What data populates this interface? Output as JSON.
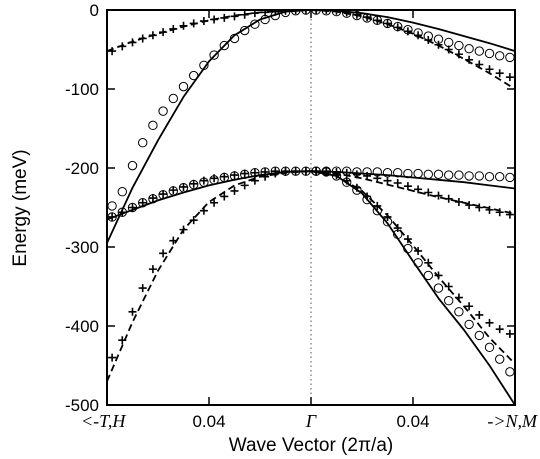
{
  "chart_data": {
    "type": "line",
    "ylabel": "Energy (meV)",
    "xlabel": "Wave Vector (2π/a)",
    "x_tick_labels": [
      "<-T,H",
      "0.04",
      "Γ",
      "0.04",
      "->N,M"
    ],
    "y_tick_labels": [
      "0",
      "-100",
      "-200",
      "-300",
      "-400",
      "-500"
    ],
    "ylim": [
      -500,
      0
    ],
    "xlim": [
      -0.08,
      0.08
    ],
    "x_ticks": [
      -0.08,
      -0.04,
      0,
      0.04,
      0.08
    ],
    "y_ticks": [
      0,
      -100,
      -200,
      -300,
      -400,
      -500
    ],
    "gamma_line": true,
    "series": [
      {
        "style": "solid",
        "x": [
          -0.08,
          -0.07,
          -0.06,
          -0.05,
          -0.04,
          -0.03,
          -0.02,
          -0.01,
          0
        ],
        "y": [
          -295,
          -225,
          -165,
          -110,
          -65,
          -32,
          -12,
          -2,
          0
        ]
      },
      {
        "style": "solid",
        "x": [
          0,
          0.01,
          0.02,
          0.03,
          0.04,
          0.05,
          0.06,
          0.07,
          0.08
        ],
        "y": [
          0,
          -1,
          -4,
          -9,
          -16,
          -24,
          -33,
          -42,
          -52
        ]
      },
      {
        "style": "dashed",
        "x": [
          0,
          0.01,
          0.02,
          0.03,
          0.04,
          0.05,
          0.06,
          0.07,
          0.08
        ],
        "y": [
          0,
          -2,
          -8,
          -18,
          -30,
          -45,
          -62,
          -80,
          -100
        ]
      },
      {
        "style": "dashed",
        "x": [
          -0.08,
          -0.07,
          -0.06,
          -0.05,
          -0.04,
          -0.03,
          -0.02,
          -0.01,
          0
        ],
        "y": [
          -52,
          -40,
          -30,
          -21,
          -13,
          -7,
          -3,
          -1,
          0
        ]
      },
      {
        "style": "solid",
        "x": [
          -0.08,
          -0.07,
          -0.06,
          -0.05,
          -0.04,
          -0.03,
          -0.02,
          -0.01,
          0
        ],
        "y": [
          -265,
          -253,
          -241,
          -231,
          -222,
          -215,
          -209,
          -205,
          -204
        ]
      },
      {
        "style": "solid",
        "x": [
          0,
          0.01,
          0.02,
          0.03,
          0.04,
          0.05,
          0.06,
          0.07,
          0.08
        ],
        "y": [
          -204,
          -205,
          -207,
          -209,
          -212,
          -215,
          -218,
          -222,
          -226
        ]
      },
      {
        "style": "dashed",
        "x": [
          0,
          0.01,
          0.02,
          0.03,
          0.04,
          0.05,
          0.06,
          0.07,
          0.08
        ],
        "y": [
          -204,
          -207,
          -213,
          -221,
          -229,
          -237,
          -244,
          -251,
          -258
        ]
      },
      {
        "style": "dashed",
        "x": [
          -0.08,
          -0.07,
          -0.06,
          -0.05,
          -0.04,
          -0.03,
          -0.02,
          -0.01,
          0
        ],
        "y": [
          -470,
          -395,
          -330,
          -278,
          -243,
          -222,
          -211,
          -206,
          -204
        ]
      },
      {
        "style": "solid",
        "x": [
          0,
          0.01,
          0.02,
          0.03,
          0.04,
          0.05,
          0.06,
          0.07,
          0.08
        ],
        "y": [
          -204,
          -210,
          -232,
          -270,
          -318,
          -365,
          -405,
          -450,
          -500
        ]
      },
      {
        "style": "dashed",
        "x": [
          0,
          0.01,
          0.02,
          0.03,
          0.04,
          0.05,
          0.06,
          0.07,
          0.08
        ],
        "y": [
          -204,
          -210,
          -229,
          -260,
          -298,
          -338,
          -375,
          -415,
          -448
        ]
      },
      {
        "style": "circles",
        "x": [
          -0.078,
          -0.074,
          -0.07,
          -0.066,
          -0.062,
          -0.058,
          -0.054,
          -0.05,
          -0.046,
          -0.042,
          -0.038,
          -0.034,
          -0.03,
          -0.026,
          -0.022,
          -0.018,
          -0.014,
          -0.01,
          -0.006,
          -0.002,
          0.002,
          0.006,
          0.01,
          0.014,
          0.018,
          0.022,
          0.026,
          0.03,
          0.034,
          0.038,
          0.042,
          0.046,
          0.05,
          0.054,
          0.058,
          0.062,
          0.066,
          0.07,
          0.074,
          0.078
        ],
        "y": [
          -248,
          -230,
          -197,
          -168,
          -146,
          -128,
          -112,
          -97,
          -83,
          -70,
          -57,
          -45,
          -36,
          -26,
          -18,
          -12,
          -7,
          -3,
          -1,
          0,
          0,
          -1,
          -2,
          -4,
          -7,
          -10,
          -13,
          -17,
          -21,
          -25,
          -29,
          -33,
          -37,
          -41,
          -45,
          -49,
          -52,
          -55,
          -58,
          -60
        ]
      },
      {
        "style": "crosses",
        "x": [
          -0.078,
          -0.074,
          -0.07,
          -0.066,
          -0.062,
          -0.058,
          -0.054,
          -0.05,
          -0.046,
          -0.042,
          -0.038,
          -0.034,
          -0.03,
          -0.026,
          -0.022,
          -0.018,
          -0.014,
          -0.01,
          -0.006,
          -0.002,
          0.002,
          0.006,
          0.01,
          0.014,
          0.018,
          0.022,
          0.026,
          0.03,
          0.034,
          0.038,
          0.042,
          0.046,
          0.05,
          0.054,
          0.058,
          0.062,
          0.066,
          0.07,
          0.074,
          0.078
        ],
        "y": [
          -52,
          -46,
          -41,
          -36,
          -32,
          -28,
          -24,
          -20,
          -17,
          -14,
          -12,
          -10,
          -8,
          -6,
          -4,
          -3,
          -2,
          -1,
          0,
          0,
          0,
          0,
          -1,
          -3,
          -6,
          -9,
          -13,
          -17,
          -22,
          -27,
          -32,
          -38,
          -44,
          -50,
          -56,
          -63,
          -69,
          -75,
          -80,
          -85
        ]
      },
      {
        "style": "circles",
        "x": [
          -0.078,
          -0.074,
          -0.07,
          -0.066,
          -0.062,
          -0.058,
          -0.054,
          -0.05,
          -0.046,
          -0.042,
          -0.038,
          -0.034,
          -0.03,
          -0.026,
          -0.022,
          -0.018,
          -0.014,
          -0.01,
          -0.006,
          -0.002,
          0.002,
          0.006,
          0.01,
          0.014,
          0.018,
          0.022,
          0.026,
          0.03,
          0.034,
          0.038,
          0.042,
          0.046,
          0.05,
          0.054,
          0.058,
          0.062,
          0.066,
          0.07,
          0.074,
          0.078
        ],
        "y": [
          -262,
          -256,
          -250,
          -244,
          -239,
          -234,
          -229,
          -225,
          -221,
          -218,
          -215,
          -212,
          -210,
          -208,
          -206,
          -205,
          -204,
          -204,
          -204,
          -204,
          -204,
          -204,
          -204,
          -204,
          -205,
          -205,
          -205,
          -206,
          -206,
          -207,
          -207,
          -208,
          -208,
          -209,
          -209,
          -210,
          -210,
          -211,
          -211,
          -212
        ]
      },
      {
        "style": "crosses",
        "x": [
          -0.078,
          -0.074,
          -0.07,
          -0.066,
          -0.062,
          -0.058,
          -0.054,
          -0.05,
          -0.046,
          -0.042,
          -0.038,
          -0.034,
          -0.03,
          -0.026,
          -0.022,
          -0.018,
          -0.014,
          -0.01,
          -0.006,
          -0.002,
          0.002,
          0.006,
          0.01,
          0.014,
          0.018,
          0.022,
          0.026,
          0.03,
          0.034,
          0.038,
          0.042,
          0.046,
          0.05,
          0.054,
          0.058,
          0.062,
          0.066,
          0.07,
          0.074,
          0.078
        ],
        "y": [
          -262,
          -256,
          -250,
          -244,
          -238,
          -233,
          -228,
          -224,
          -220,
          -216,
          -213,
          -211,
          -209,
          -207,
          -206,
          -205,
          -204,
          -204,
          -204,
          -204,
          -204,
          -204,
          -205,
          -206,
          -208,
          -210,
          -213,
          -216,
          -219,
          -223,
          -227,
          -231,
          -235,
          -239,
          -243,
          -247,
          -250,
          -253,
          -256,
          -259
        ]
      },
      {
        "style": "crosses",
        "x": [
          -0.078,
          -0.074,
          -0.07,
          -0.066,
          -0.062,
          -0.058,
          -0.054,
          -0.05,
          -0.046,
          -0.042,
          -0.038,
          -0.034,
          -0.03,
          -0.026,
          -0.022,
          -0.018,
          -0.014,
          -0.01,
          -0.006,
          -0.002,
          0.002,
          0.006,
          0.01,
          0.014,
          0.018,
          0.022,
          0.026,
          0.03,
          0.034,
          0.038,
          0.042,
          0.046,
          0.05,
          0.054,
          0.058,
          0.062,
          0.066,
          0.07,
          0.074,
          0.078
        ],
        "y": [
          -440,
          -418,
          -382,
          -352,
          -328,
          -308,
          -292,
          -278,
          -266,
          -254,
          -244,
          -236,
          -229,
          -222,
          -216,
          -211,
          -207,
          -205,
          -204,
          -204,
          -204,
          -205,
          -209,
          -216,
          -225,
          -236,
          -248,
          -262,
          -276,
          -290,
          -305,
          -320,
          -336,
          -350,
          -364,
          -375,
          -386,
          -396,
          -404,
          -410
        ]
      },
      {
        "style": "circles",
        "x": [
          0.002,
          0.006,
          0.01,
          0.014,
          0.018,
          0.022,
          0.026,
          0.03,
          0.034,
          0.038,
          0.042,
          0.046,
          0.05,
          0.054,
          0.058,
          0.062,
          0.066,
          0.07,
          0.074,
          0.078
        ],
        "y": [
          -204,
          -205,
          -210,
          -218,
          -228,
          -240,
          -254,
          -268,
          -284,
          -302,
          -320,
          -336,
          -352,
          -368,
          -382,
          -398,
          -412,
          -427,
          -442,
          -458
        ]
      }
    ]
  }
}
